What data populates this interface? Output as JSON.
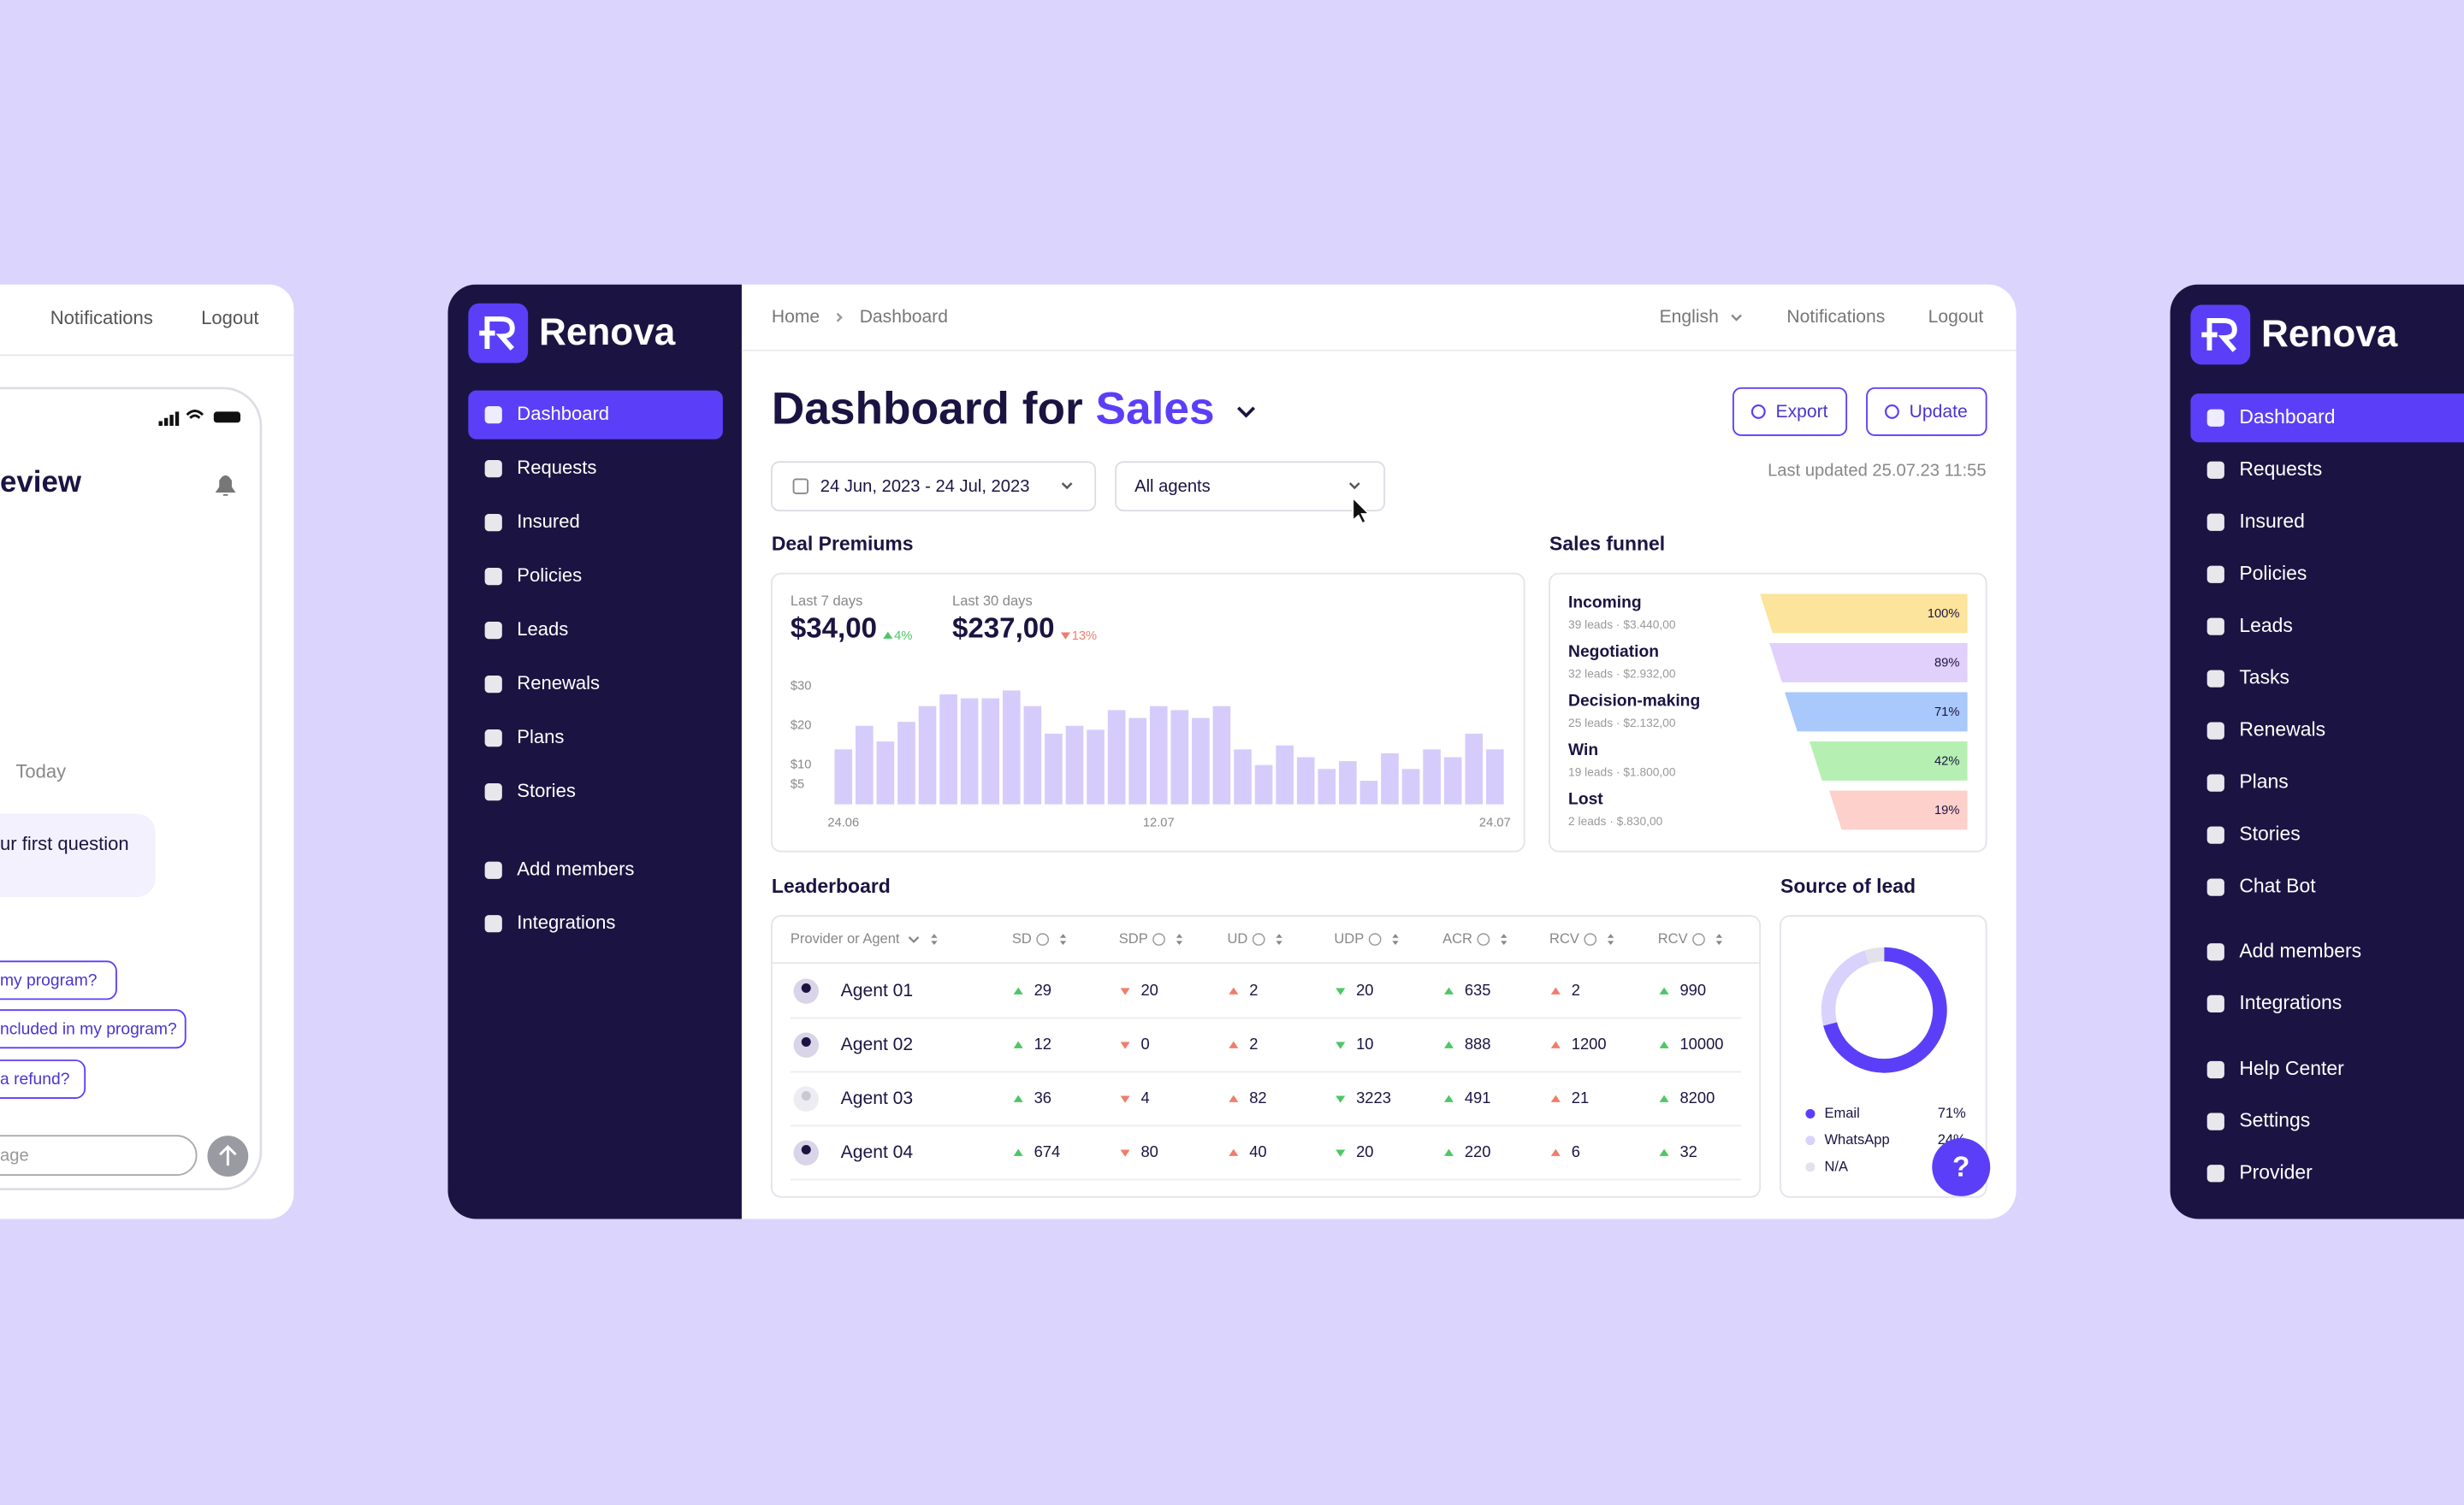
{
  "left_panel": {
    "links": [
      "Notifications",
      "Logout"
    ],
    "heading": "eview",
    "day": "Today",
    "message": "ur first question",
    "suggestions": [
      "my program?",
      "ncluded in my program?",
      "a refund?"
    ],
    "input_placeholder": "age"
  },
  "sidebar": {
    "brand": "Renova",
    "active": 0,
    "nav": [
      "Dashboard",
      "Requests",
      "Insured",
      "Policies",
      "Leads",
      "Renewals",
      "Plans",
      "Stories"
    ],
    "nav_secondary": [
      "Add members",
      "Integrations"
    ]
  },
  "topbar": {
    "breadcrumb": [
      "Home",
      "Dashboard"
    ],
    "language": "English",
    "links": [
      "Notifications",
      "Logout"
    ]
  },
  "header": {
    "title": "Dashboard for",
    "title_highlight": "Sales",
    "buttons": [
      "Export",
      "Update"
    ],
    "date_range": "24 Jun, 2023 - 24 Jul, 2023",
    "agent_filter": "All agents",
    "last_updated": "Last updated 25.07.23 11:55"
  },
  "stats": [
    {
      "label": "Last 7 days",
      "value": "$34,00",
      "change": "4%",
      "trend": "up"
    },
    {
      "label": "Last 30 days",
      "value": "$237,00",
      "change": "13%",
      "trend": "down"
    }
  ],
  "chart_data": [
    {
      "type": "bar",
      "title": "Deal Premiums",
      "color": "#d5ccfb",
      "categories": [
        "24.06",
        null,
        null,
        null,
        null,
        null,
        null,
        null,
        null,
        null,
        null,
        null,
        null,
        null,
        null,
        "12.07",
        null,
        null,
        null,
        null,
        null,
        null,
        null,
        null,
        null,
        null,
        null,
        null,
        null,
        null,
        null,
        "24.07"
      ],
      "values": [
        14,
        20,
        16,
        21,
        25,
        28,
        27,
        27,
        29,
        25,
        18,
        20,
        19,
        24,
        22,
        25,
        24,
        22,
        25,
        14,
        10,
        15,
        12,
        9,
        11,
        6,
        13,
        9,
        14,
        12,
        18,
        14
      ],
      "ylim": [
        0,
        32
      ],
      "yticks": [
        {
          "value": 30,
          "label": "$30"
        },
        {
          "value": 20,
          "label": "$20"
        },
        {
          "value": 10,
          "label": "$10"
        },
        {
          "value": 5,
          "label": "$5"
        }
      ]
    },
    {
      "type": "funnel",
      "title": "Sales funnel",
      "categories": [
        "Incoming",
        "Negotiation",
        "Decision-making",
        "Win",
        "Lost"
      ],
      "details": [
        "39 leads · $3.440,00",
        "32 leads · $2.932,00",
        "25 leads · $2.132,00",
        "19 leads · $1.800,00",
        "2 leads · $.830,00"
      ],
      "values": [
        100,
        89,
        71,
        42,
        19
      ],
      "value_labels": [
        "100%",
        "89%",
        "71%",
        "42%",
        "19%"
      ],
      "colors": [
        "#fde49c",
        "#e0d0fb",
        "#a9c8fb",
        "#b6efb2",
        "#fdd0cb"
      ]
    },
    {
      "type": "pie",
      "title": "Source of lead",
      "categories": [
        "Email",
        "WhatsApp",
        "N/A"
      ],
      "values": [
        71,
        24,
        5
      ],
      "value_labels": [
        "71%",
        "24%",
        null
      ],
      "colors": [
        "#5b3ff8",
        "#d9d2fc",
        "#e3e2ea"
      ]
    }
  ],
  "leaderboard": {
    "title": "Leaderboard",
    "columns": [
      "Provider or Agent",
      "SD",
      "SDP",
      "UD",
      "UDP",
      "ACR",
      "RCV",
      "RCV"
    ],
    "trends": [
      "up",
      "down",
      "up",
      "down",
      "up",
      "up",
      "up"
    ],
    "trend_colors": [
      "#4cc764",
      "#f07d6b",
      "#f07d6b",
      "#4cc764",
      "#4cc764",
      "#f07d6b",
      "#4cc764"
    ],
    "rows": [
      [
        "Agent 01",
        29,
        20,
        2,
        20,
        635,
        2,
        990
      ],
      [
        "Agent 02",
        12,
        0,
        2,
        10,
        888,
        1200,
        10000
      ],
      [
        "Agent 03",
        36,
        4,
        82,
        3223,
        491,
        21,
        8200
      ],
      [
        "Agent 04",
        674,
        80,
        40,
        20,
        220,
        6,
        32
      ]
    ]
  },
  "help_button": "?",
  "sidebar_right": {
    "brand": "Renova",
    "active": 0,
    "nav": [
      "Dashboard",
      "Requests",
      "Insured",
      "Policies",
      "Leads",
      "Tasks",
      "Renewals",
      "Plans",
      "Stories",
      "Chat Bot"
    ],
    "nav_secondary": [
      "Add members",
      "Integrations"
    ],
    "nav_tertiary": [
      "Help Center",
      "Settings",
      "Provider"
    ]
  }
}
